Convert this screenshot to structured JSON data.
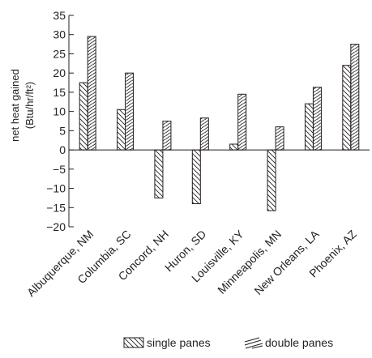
{
  "chart_data": {
    "type": "bar",
    "categories": [
      "Albuquerque, NM",
      "Columbia, SC",
      "Concord, NH",
      "Huron, SD",
      "Louisville, KY",
      "Minneapolis, MN",
      "New Orleans, LA",
      "Phoenix, AZ"
    ],
    "series": [
      {
        "name": "single panes",
        "values": [
          17.5,
          10.5,
          -12.5,
          -14,
          1.5,
          -15.8,
          12,
          22
        ]
      },
      {
        "name": "double panes",
        "values": [
          29.5,
          20,
          7.5,
          8.3,
          14.5,
          6,
          16.3,
          27.5
        ]
      }
    ],
    "ylabel_line1": "net heat gained",
    "ylabel_line2": "(Btu/hr/ft²)",
    "ylim": [
      -20,
      35
    ],
    "yticks": [
      -20,
      -15,
      -10,
      -5,
      0,
      5,
      10,
      15,
      20,
      25,
      30,
      35
    ],
    "legend_position": "bottom",
    "grid": false
  }
}
